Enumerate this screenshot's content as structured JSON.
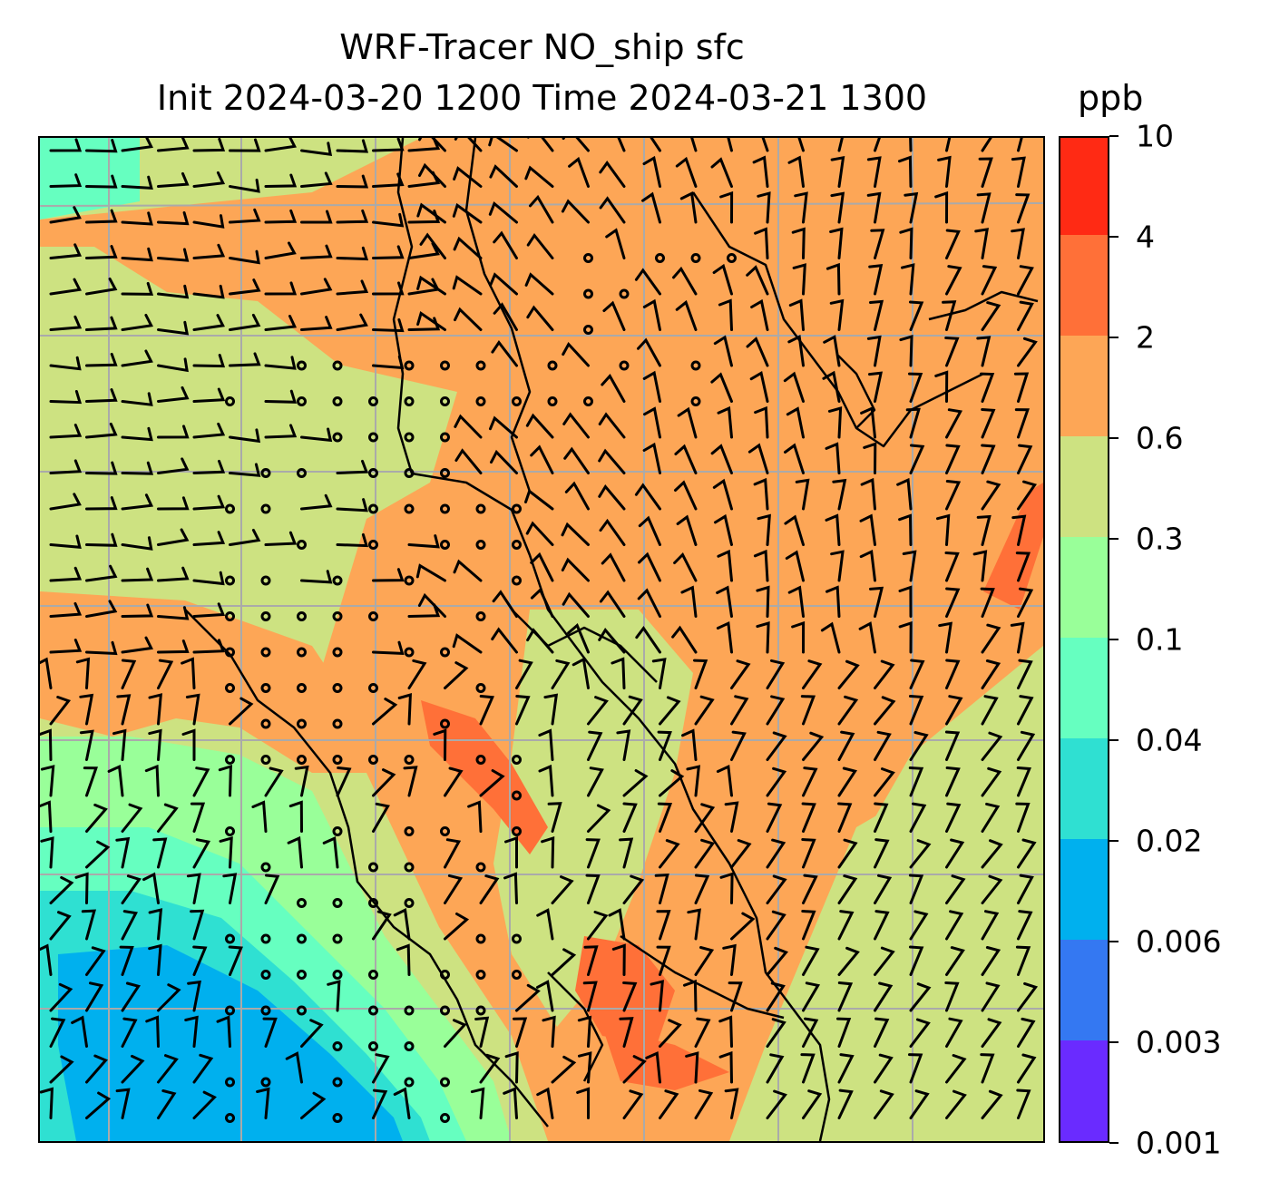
{
  "title": {
    "line1": "WRF-Tracer NO_ship sfc",
    "line2": "Init 2024-03-20 1200 Time 2024-03-21 1300"
  },
  "units": "ppb",
  "colorbar": {
    "levels": [
      "0.001",
      "0.003",
      "0.006",
      "0.02",
      "0.04",
      "0.1",
      "0.3",
      "0.6",
      "2",
      "4",
      "10"
    ],
    "colors": [
      "#6a2bff",
      "#3478f2",
      "#00b0ee",
      "#2fe0d2",
      "#66ffc0",
      "#99ff99",
      "#cde281",
      "#fda656",
      "#ff7038",
      "#ff2a14"
    ]
  },
  "map": {
    "background_color": "#cde281",
    "coastline_color": "#000000",
    "gridline_color": "#aaaaaa",
    "gridlines": true
  }
}
